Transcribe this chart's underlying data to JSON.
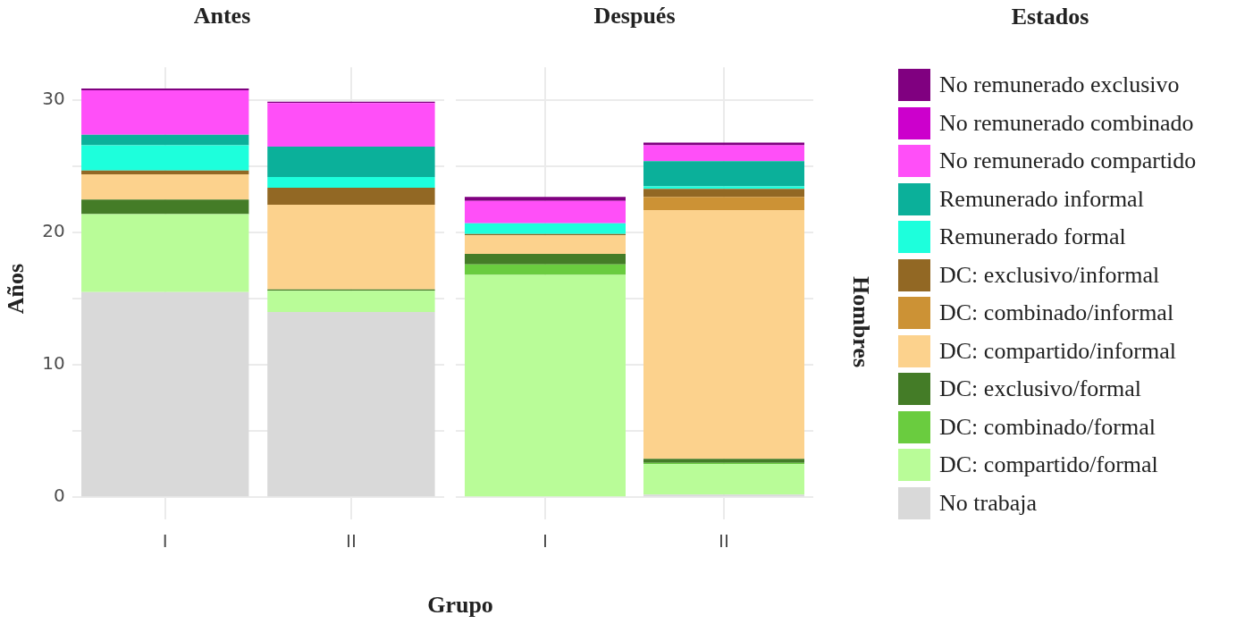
{
  "chart_data": [
    {
      "type": "bar",
      "title": "Antes",
      "xlabel": "Grupo",
      "ylabel": "Años",
      "categories": [
        "I",
        "II"
      ],
      "stacked": true,
      "grid": true,
      "ylim": [
        -1,
        32.5
      ],
      "yticks": [
        0,
        {
          "value": 5,
          "label": null
        },
        10,
        {
          "value": 15,
          "label": null
        },
        20,
        {
          "value": 25,
          "label": null
        },
        30
      ],
      "series": [
        {
          "color": "#d9d9d9",
          "values": [
            15.5,
            14.0
          ]
        },
        {
          "color": "#b9fc98",
          "values": [
            5.9,
            1.6
          ]
        },
        {
          "color": "#6acc3f",
          "values": [
            0,
            0
          ]
        },
        {
          "color": "#447c27",
          "values": [
            1.1,
            0.1
          ]
        },
        {
          "color": "#fcd28d",
          "values": [
            1.9,
            6.4
          ]
        },
        {
          "color": "#cc9235",
          "values": [
            0,
            0
          ]
        },
        {
          "color": "#926824",
          "values": [
            0.3,
            1.3
          ]
        },
        {
          "color": "#1dffdc",
          "values": [
            1.9,
            0.8
          ]
        },
        {
          "color": "#0bb09a",
          "values": [
            0.8,
            2.3
          ]
        },
        {
          "color": "#ff4ff8",
          "values": [
            3.35,
            3.3
          ]
        },
        {
          "color": "#cc00cc",
          "values": [
            0,
            0
          ]
        },
        {
          "color": "#800080",
          "values": [
            0.15,
            0.1
          ]
        }
      ]
    },
    {
      "type": "bar",
      "title": "Después",
      "categories": [
        "I",
        "II"
      ],
      "stacked": true,
      "grid": true,
      "ylim": [
        -1,
        32.5
      ],
      "tick_labels": "x",
      "yticks": [
        0,
        {
          "value": 5,
          "label": null
        },
        10,
        {
          "value": 15,
          "label": null
        },
        20,
        {
          "value": 25,
          "label": null
        },
        30
      ],
      "legend": "right",
      "legend_title": "Estados",
      "annotations": [
        "Hombres"
      ],
      "series": [
        {
          "name": "No trabaja",
          "color": "#d9d9d9",
          "values": [
            0,
            0.2
          ]
        },
        {
          "name": "DC: compartido/formal",
          "color": "#b9fc98",
          "values": [
            16.8,
            2.3
          ]
        },
        {
          "name": "DC: combinado/formal",
          "color": "#6acc3f",
          "values": [
            0.8,
            0.1
          ]
        },
        {
          "name": "DC: exclusivo/formal",
          "color": "#447c27",
          "values": [
            0.8,
            0.3
          ]
        },
        {
          "name": "DC: compartido/informal",
          "color": "#fcd28d",
          "values": [
            1.4,
            18.8
          ]
        },
        {
          "name": "DC: combinado/informal",
          "color": "#cc9235",
          "values": [
            0,
            1.0
          ]
        },
        {
          "name": "DC: exclusivo/informal",
          "color": "#926824",
          "values": [
            0.1,
            0.6
          ]
        },
        {
          "name": "Remunerado formal",
          "color": "#1dffdc",
          "values": [
            0.8,
            0.2
          ]
        },
        {
          "name": "Remunerado informal",
          "color": "#0bb09a",
          "values": [
            0,
            1.9
          ]
        },
        {
          "name": "No remunerado compartido",
          "color": "#ff4ff8",
          "values": [
            1.7,
            1.2
          ]
        },
        {
          "name": "No remunerado combinado",
          "color": "#cc00cc",
          "values": [
            0,
            0
          ]
        },
        {
          "name": "No remunerado exclusivo",
          "color": "#800080",
          "values": [
            0.3,
            0.2
          ]
        }
      ]
    }
  ]
}
